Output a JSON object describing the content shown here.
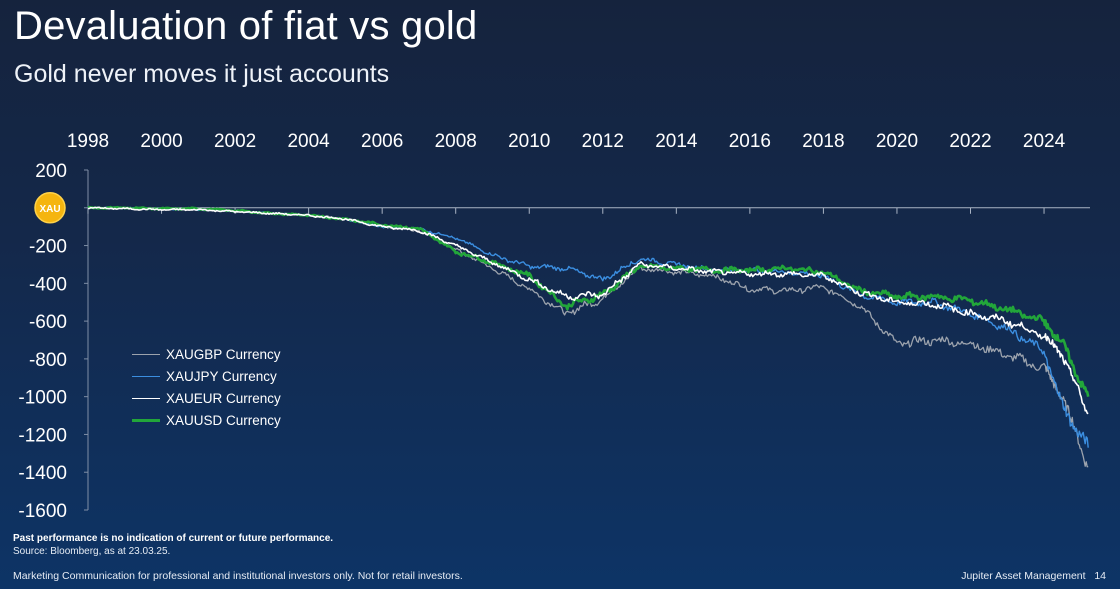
{
  "header": {
    "title": "Devaluation of fiat vs gold",
    "subtitle": "Gold never moves it just accounts"
  },
  "chart_data": {
    "type": "line",
    "title": "Devaluation of fiat vs gold",
    "subtitle": "Gold never moves it just accounts",
    "xlabel": "",
    "ylabel": "",
    "x_ticks": [
      "1998",
      "2000",
      "2002",
      "2004",
      "2006",
      "2008",
      "2010",
      "2012",
      "2014",
      "2016",
      "2018",
      "2020",
      "2022",
      "2024"
    ],
    "y_ticks": [
      200,
      0,
      -200,
      -400,
      -600,
      -800,
      -1000,
      -1200,
      -1400,
      -1600
    ],
    "y_tick_labels": [
      "200",
      "",
      "-200",
      "-400",
      "-600",
      "-800",
      "-1000",
      "-1200",
      "-1400",
      "-1600"
    ],
    "xlim": [
      1998,
      2025.25
    ],
    "ylim": [
      -1600,
      200
    ],
    "x_axis_position": "top",
    "zero_marker_label": "XAU",
    "grid": false,
    "legend_position": "left-middle",
    "x": [
      1998,
      1999,
      2000,
      2001,
      2002,
      2003,
      2004,
      2005,
      2006,
      2007,
      2008,
      2009,
      2010,
      2011,
      2012,
      2013,
      2014,
      2015,
      2016,
      2017,
      2018,
      2019,
      2020,
      2021,
      2022,
      2023,
      2024,
      2024.5,
      2025.2
    ],
    "series": [
      {
        "name": "XAUGBP Currency",
        "color": "#9ca3ad",
        "values": [
          0,
          -5,
          -5,
          -10,
          -20,
          -30,
          -40,
          -60,
          -100,
          -120,
          -220,
          -320,
          -430,
          -560,
          -480,
          -320,
          -340,
          -360,
          -430,
          -440,
          -420,
          -520,
          -720,
          -700,
          -720,
          -780,
          -850,
          -1000,
          -1370
        ]
      },
      {
        "name": "XAUJPY Currency",
        "color": "#3b8ee0",
        "values": [
          0,
          0,
          -5,
          -10,
          -15,
          -30,
          -40,
          -60,
          -100,
          -110,
          -160,
          -250,
          -310,
          -320,
          -380,
          -270,
          -300,
          -330,
          -330,
          -340,
          -360,
          -460,
          -500,
          -500,
          -560,
          -640,
          -760,
          -1050,
          -1270
        ]
      },
      {
        "name": "XAUEUR Currency",
        "color": "#ffffff",
        "values": [
          0,
          -5,
          -10,
          -10,
          -20,
          -30,
          -40,
          -60,
          -100,
          -120,
          -200,
          -290,
          -380,
          -470,
          -460,
          -300,
          -320,
          -340,
          -350,
          -350,
          -360,
          -450,
          -500,
          -510,
          -560,
          -600,
          -680,
          -780,
          -1090
        ]
      },
      {
        "name": "XAUUSD Currency",
        "color": "#22a63a",
        "values": [
          0,
          0,
          -5,
          -5,
          -15,
          -30,
          -40,
          -60,
          -90,
          -110,
          -230,
          -290,
          -360,
          -520,
          -460,
          -310,
          -320,
          -330,
          -330,
          -320,
          -340,
          -440,
          -470,
          -470,
          -490,
          -540,
          -600,
          -720,
          -1000
        ]
      }
    ]
  },
  "footer": {
    "note": "Past performance is no indication of current or future performance.",
    "source": "Source: Bloomberg, as at 23.03.25.",
    "disclaimer": "Marketing Communication for professional and institutional investors only. Not for retail investors.",
    "brand": "Jupiter Asset Management",
    "page_number": "14"
  }
}
